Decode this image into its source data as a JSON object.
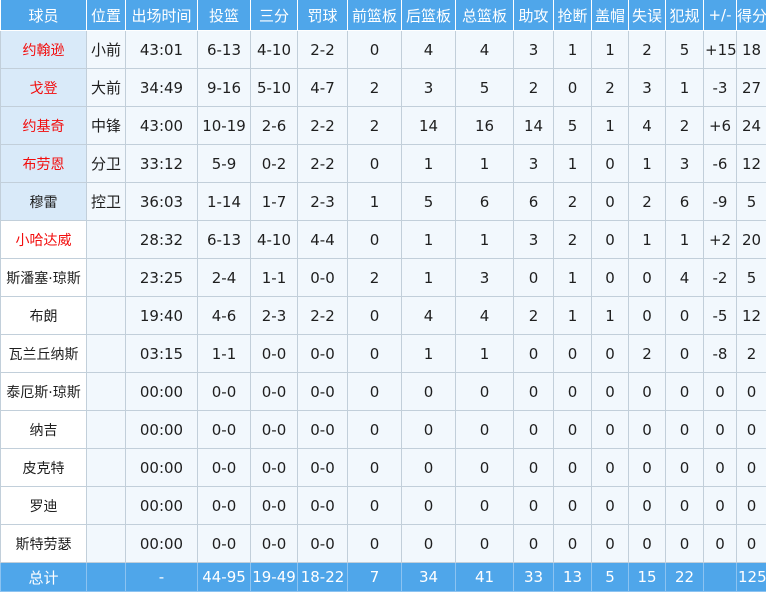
{
  "table": {
    "title": "player-box-score",
    "columns": [
      "球员",
      "位置",
      "出场时间",
      "投篮",
      "三分",
      "罚球",
      "前篮板",
      "后篮板",
      "总篮板",
      "助攻",
      "抢断",
      "盖帽",
      "失误",
      "犯规",
      "+/-",
      "得分"
    ],
    "rows": [
      {
        "name": "约翰逊",
        "red": true,
        "starter": true,
        "pos": "小前",
        "cells": [
          "43:01",
          "6-13",
          "4-10",
          "2-2",
          "0",
          "4",
          "4",
          "3",
          "1",
          "1",
          "2",
          "5",
          "+15",
          "18"
        ]
      },
      {
        "name": "戈登",
        "red": true,
        "starter": true,
        "pos": "大前",
        "cells": [
          "34:49",
          "9-16",
          "5-10",
          "4-7",
          "2",
          "3",
          "5",
          "2",
          "0",
          "2",
          "3",
          "1",
          "-3",
          "27"
        ]
      },
      {
        "name": "约基奇",
        "red": true,
        "starter": true,
        "pos": "中锋",
        "cells": [
          "43:00",
          "10-19",
          "2-6",
          "2-2",
          "2",
          "14",
          "16",
          "14",
          "5",
          "1",
          "4",
          "2",
          "+6",
          "24"
        ]
      },
      {
        "name": "布劳恩",
        "red": true,
        "starter": true,
        "pos": "分卫",
        "cells": [
          "33:12",
          "5-9",
          "0-2",
          "2-2",
          "0",
          "1",
          "1",
          "3",
          "1",
          "0",
          "1",
          "3",
          "-6",
          "12"
        ]
      },
      {
        "name": "穆雷",
        "red": false,
        "starter": true,
        "pos": "控卫",
        "cells": [
          "36:03",
          "1-14",
          "1-7",
          "2-3",
          "1",
          "5",
          "6",
          "6",
          "2",
          "0",
          "2",
          "6",
          "-9",
          "5"
        ]
      },
      {
        "name": "小哈达威",
        "red": true,
        "starter": false,
        "pos": "",
        "cells": [
          "28:32",
          "6-13",
          "4-10",
          "4-4",
          "0",
          "1",
          "1",
          "3",
          "2",
          "0",
          "1",
          "1",
          "+2",
          "20"
        ]
      },
      {
        "name": "斯潘塞·琼斯",
        "red": false,
        "starter": false,
        "pos": "",
        "cells": [
          "23:25",
          "2-4",
          "1-1",
          "0-0",
          "2",
          "1",
          "3",
          "0",
          "1",
          "0",
          "0",
          "4",
          "-2",
          "5"
        ]
      },
      {
        "name": "布朗",
        "red": false,
        "starter": false,
        "pos": "",
        "cells": [
          "19:40",
          "4-6",
          "2-3",
          "2-2",
          "0",
          "4",
          "4",
          "2",
          "1",
          "1",
          "0",
          "0",
          "-5",
          "12"
        ]
      },
      {
        "name": "瓦兰丘纳斯",
        "red": false,
        "starter": false,
        "pos": "",
        "cells": [
          "03:15",
          "1-1",
          "0-0",
          "0-0",
          "0",
          "1",
          "1",
          "0",
          "0",
          "0",
          "2",
          "0",
          "-8",
          "2"
        ]
      },
      {
        "name": "泰厄斯·琼斯",
        "red": false,
        "starter": false,
        "pos": "",
        "cells": [
          "00:00",
          "0-0",
          "0-0",
          "0-0",
          "0",
          "0",
          "0",
          "0",
          "0",
          "0",
          "0",
          "0",
          "0",
          "0"
        ]
      },
      {
        "name": "纳吉",
        "red": false,
        "starter": false,
        "pos": "",
        "cells": [
          "00:00",
          "0-0",
          "0-0",
          "0-0",
          "0",
          "0",
          "0",
          "0",
          "0",
          "0",
          "0",
          "0",
          "0",
          "0"
        ]
      },
      {
        "name": "皮克特",
        "red": false,
        "starter": false,
        "pos": "",
        "cells": [
          "00:00",
          "0-0",
          "0-0",
          "0-0",
          "0",
          "0",
          "0",
          "0",
          "0",
          "0",
          "0",
          "0",
          "0",
          "0"
        ]
      },
      {
        "name": "罗迪",
        "red": false,
        "starter": false,
        "pos": "",
        "cells": [
          "00:00",
          "0-0",
          "0-0",
          "0-0",
          "0",
          "0",
          "0",
          "0",
          "0",
          "0",
          "0",
          "0",
          "0",
          "0"
        ]
      },
      {
        "name": "斯特劳瑟",
        "red": false,
        "starter": false,
        "pos": "",
        "cells": [
          "00:00",
          "0-0",
          "0-0",
          "0-0",
          "0",
          "0",
          "0",
          "0",
          "0",
          "0",
          "0",
          "0",
          "0",
          "0"
        ]
      }
    ],
    "total": {
      "label": "总计",
      "pos": "",
      "cells": [
        "-",
        "44-95",
        "19-49",
        "18-22",
        "7",
        "34",
        "41",
        "33",
        "13",
        "5",
        "15",
        "22",
        "",
        "125"
      ]
    }
  },
  "colors": {
    "header_bg": "#4FA6EA",
    "total_row_bg": "#4FA6EA",
    "data_cell_bg": "#F2F8FD",
    "starter_name_bg": "#D9EAF9",
    "highlight_player_red": "#F20D0D",
    "grid_border": "#C2CFDA",
    "text": "#1F1F1F"
  }
}
